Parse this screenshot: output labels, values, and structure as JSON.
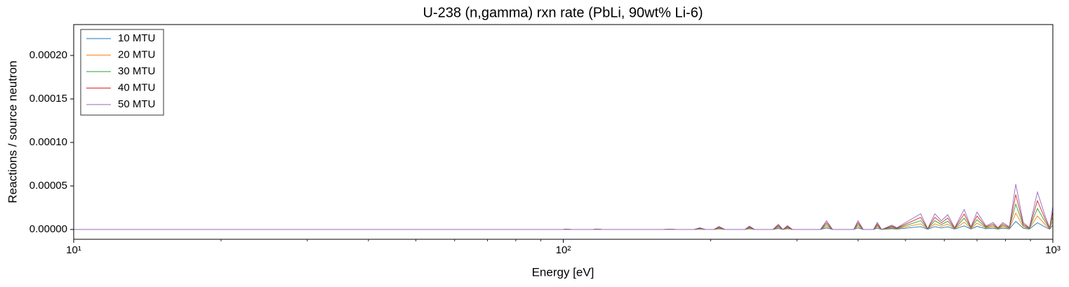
{
  "chart_data": {
    "type": "line",
    "title": "U-238 (n,gamma) rxn rate (PbLi, 90wt% Li-6)",
    "xlabel": "Energy [eV]",
    "ylabel": "Reactions / source neutron",
    "xscale": "log",
    "xlim": [
      10,
      1000
    ],
    "xticks": [
      {
        "value": 10,
        "label": "10¹"
      },
      {
        "value": 100,
        "label": "10²"
      },
      {
        "value": 1000,
        "label": "10³"
      }
    ],
    "xminorticks": [
      20,
      30,
      40,
      50,
      60,
      70,
      80,
      90,
      200,
      300,
      400,
      500,
      600,
      700,
      800,
      900
    ],
    "ylim": [
      -1.13e-05,
      0.0002355
    ],
    "yticks": [
      {
        "value": 0,
        "label": "0.00000"
      },
      {
        "value": 5e-05,
        "label": "0.00005"
      },
      {
        "value": 0.0001,
        "label": "0.00010"
      },
      {
        "value": 0.00015,
        "label": "0.00015"
      },
      {
        "value": 0.0002,
        "label": "0.00020"
      }
    ],
    "legend": "upper left",
    "x": [
      10,
      100,
      101,
      104,
      115,
      117,
      120,
      160,
      165,
      170,
      185,
      190,
      195,
      203,
      208,
      214,
      235,
      240,
      246,
      268,
      275,
      281,
      287,
      294,
      335,
      345,
      355,
      392,
      400,
      410,
      430,
      438,
      447,
      469,
      480,
      537,
      555,
      574,
      592,
      610,
      630,
      659,
      680,
      700,
      730,
      755,
      772,
      790,
      815,
      840,
      870,
      895,
      930,
      965,
      985,
      1000
    ],
    "series": [
      {
        "name": "10 MTU",
        "color": "#1f77b4",
        "values": [
          0,
          0,
          9e-08,
          0,
          0,
          1.1e-07,
          0,
          0,
          7e-08,
          0,
          0,
          3.6e-07,
          0,
          0,
          6.3e-07,
          0,
          0,
          7.2e-07,
          0,
          0,
          1.08e-06,
          0,
          8.1e-07,
          0,
          0,
          1.8e-06,
          0,
          0,
          1.8e-06,
          0,
          0,
          1.44e-06,
          0,
          9e-07,
          3.6e-07,
          3.24e-06,
          1.8e-07,
          3.24e-06,
          1.8e-06,
          3.06e-06,
          3.6e-07,
          4.14e-06,
          5.4e-07,
          3.6e-06,
          7.2e-07,
          1.44e-06,
          3.6e-07,
          1.44e-06,
          5.4e-07,
          9.36e-06,
          1.44e-06,
          3.6e-07,
          7.74e-06,
          2.7e-06,
          3.6e-07,
          4.86e-06
        ]
      },
      {
        "name": "20 MTU",
        "color": "#ff7f0e",
        "values": [
          0,
          0,
          1.8e-07,
          0,
          0,
          2.2e-07,
          0,
          0,
          1.4e-07,
          0,
          0,
          7.2e-07,
          0,
          0,
          1.26e-06,
          0,
          0,
          1.44e-06,
          0,
          0,
          2.16e-06,
          0,
          1.62e-06,
          0,
          0,
          3.6e-06,
          0,
          0,
          3.6e-06,
          0,
          0,
          2.88e-06,
          0,
          1.8e-06,
          7.2e-07,
          6.48e-06,
          3.6e-07,
          6.48e-06,
          3.6e-06,
          6.12e-06,
          7.2e-07,
          8.28e-06,
          1.08e-06,
          7.2e-06,
          1.44e-06,
          2.88e-06,
          7.2e-07,
          2.88e-06,
          1.08e-06,
          1.872e-05,
          2.88e-06,
          7.2e-07,
          1.548e-05,
          5.4e-06,
          7.2e-07,
          9.72e-06
        ]
      },
      {
        "name": "30 MTU",
        "color": "#2ca02c",
        "values": [
          0,
          0,
          2.8e-07,
          0,
          0,
          3.4e-07,
          0,
          0,
          2.2e-07,
          0,
          0,
          1.12e-06,
          0,
          0,
          1.96e-06,
          0,
          0,
          2.24e-06,
          0,
          0,
          3.36e-06,
          0,
          2.52e-06,
          0,
          0,
          5.6e-06,
          0,
          0,
          5.6e-06,
          0,
          0,
          4.48e-06,
          0,
          2.8e-06,
          1.12e-06,
          1.008e-05,
          5.6e-07,
          1.008e-05,
          5.6e-06,
          9.52e-06,
          1.12e-06,
          1.288e-05,
          1.68e-06,
          1.12e-05,
          2.24e-06,
          4.48e-06,
          1.12e-06,
          4.48e-06,
          1.68e-06,
          2.912e-05,
          4.48e-06,
          1.12e-06,
          2.408e-05,
          8.4e-06,
          1.12e-06,
          1.512e-05
        ]
      },
      {
        "name": "40 MTU",
        "color": "#d62728",
        "values": [
          0,
          0,
          3.9e-07,
          0,
          0,
          4.6e-07,
          0,
          0,
          3.1e-07,
          0,
          0,
          1.54e-06,
          0,
          0,
          2.7e-06,
          0,
          0,
          3.08e-06,
          0,
          0,
          4.62e-06,
          0,
          3.47e-06,
          0,
          0,
          7.7e-06,
          0,
          0,
          7.7e-06,
          0,
          0,
          6.16e-06,
          0,
          3.85e-06,
          1.54e-06,
          1.386e-05,
          7.7e-07,
          1.386e-05,
          7.7e-06,
          1.309e-05,
          1.54e-06,
          1.771e-05,
          2.31e-06,
          1.54e-05,
          3.08e-06,
          6.16e-06,
          1.54e-06,
          6.16e-06,
          2.31e-06,
          4.004e-05,
          6.16e-06,
          1.54e-06,
          3.311e-05,
          1.155e-05,
          1.54e-06,
          2.079e-05
        ]
      },
      {
        "name": "50 MTU",
        "color": "#9467bd",
        "values": [
          0,
          0,
          5e-07,
          0,
          0,
          6e-07,
          0,
          0,
          4e-07,
          0,
          0,
          2e-06,
          0,
          0,
          3.5e-06,
          0,
          0,
          4e-06,
          0,
          0,
          6e-06,
          0,
          4.5e-06,
          0,
          0,
          1e-05,
          0,
          0,
          1e-05,
          0,
          0,
          8e-06,
          0,
          5e-06,
          2e-06,
          1.8e-05,
          1e-06,
          1.8e-05,
          1e-05,
          1.7e-05,
          2e-06,
          2.3e-05,
          3e-06,
          2e-05,
          4e-06,
          8e-06,
          2e-06,
          8e-06,
          3e-06,
          5.2e-05,
          8e-06,
          2e-06,
          4.3e-05,
          1.5e-05,
          2e-06,
          2.7e-05
        ]
      }
    ]
  }
}
